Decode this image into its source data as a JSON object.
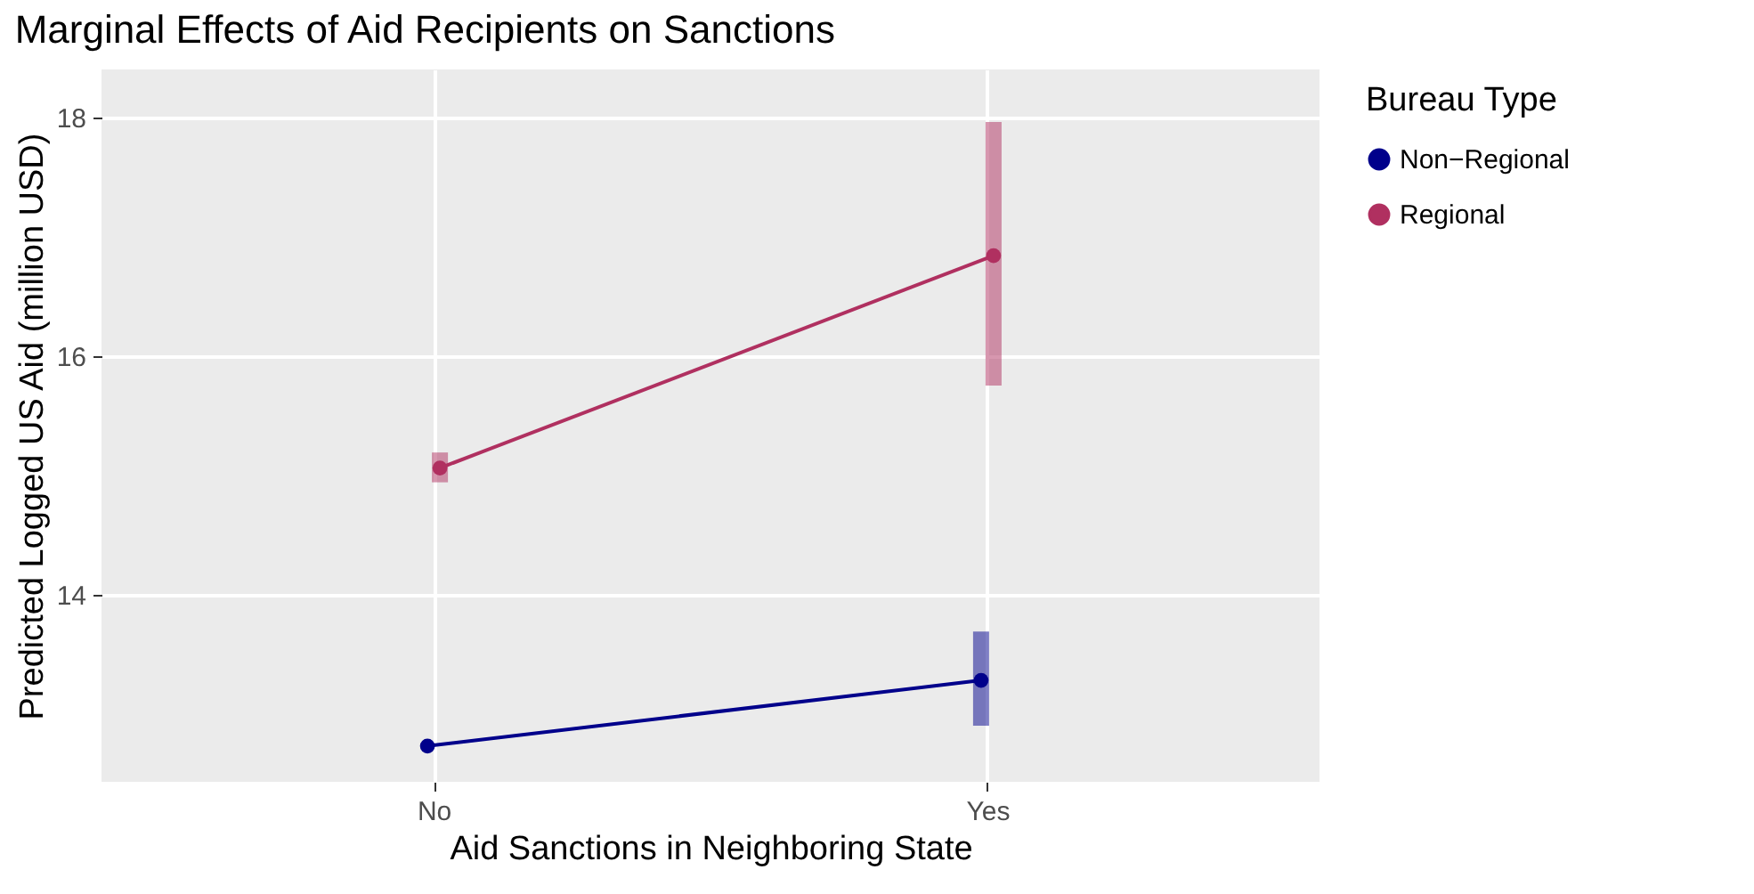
{
  "chart_data": {
    "type": "line",
    "title": "Marginal Effects of Aid Recipients on Sanctions",
    "xlabel": "Aid Sanctions in Neighboring State",
    "ylabel": "Predicted Logged US Aid (million USD)",
    "legend_title": "Bureau Type",
    "categories": [
      "No",
      "Yes"
    ],
    "series": [
      {
        "name": "Non−Regional",
        "color": "#00008b",
        "values": [
          12.73,
          13.28
        ],
        "errors": [
          null,
          [
            12.9,
            13.69
          ]
        ]
      },
      {
        "name": "Regional",
        "color": "#b03060",
        "values": [
          15.06,
          16.84
        ],
        "errors": [
          [
            14.94,
            15.19
          ],
          [
            15.75,
            17.96
          ]
        ]
      }
    ],
    "ylim": [
      12.43,
      18.4
    ],
    "yticks": [
      14,
      16,
      18
    ],
    "grid": true,
    "legend": "right",
    "marker": "circle",
    "line_style": "solid"
  }
}
